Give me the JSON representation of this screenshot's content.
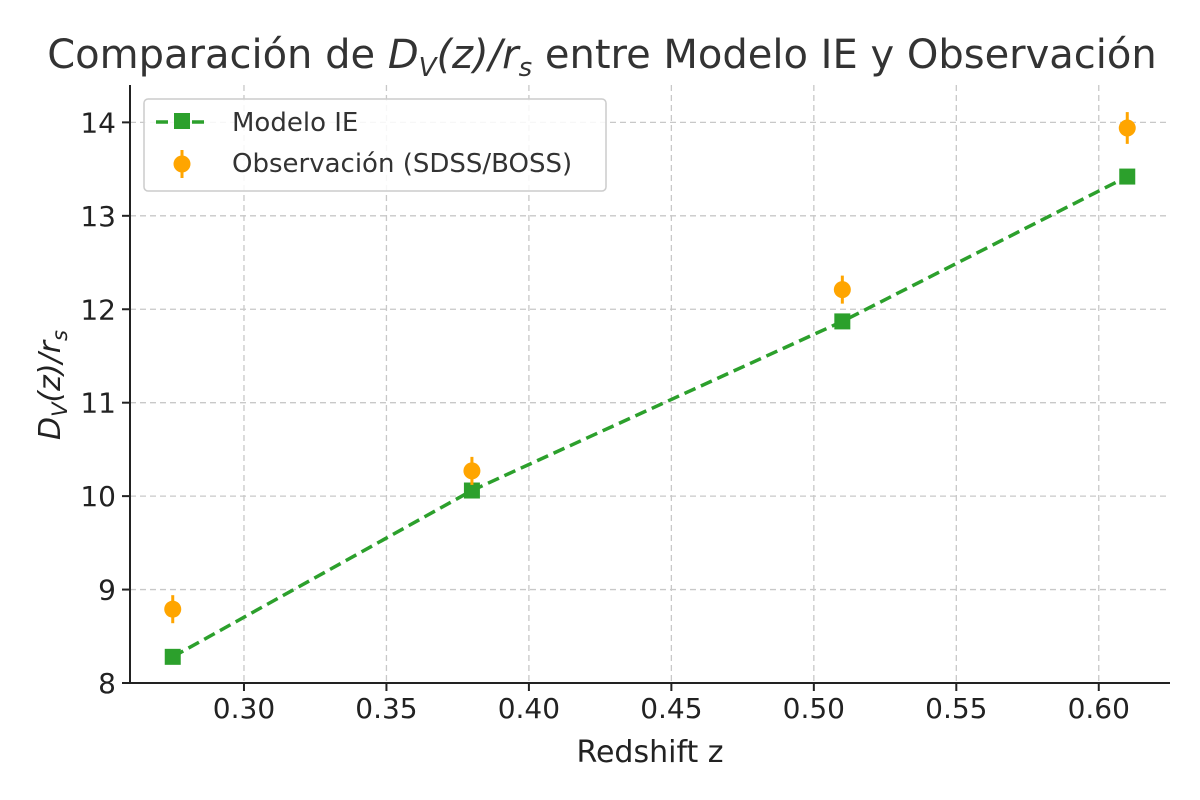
{
  "chart_data": {
    "type": "line",
    "title": {
      "prefix": "Comparación de ",
      "math": {
        "main": "D",
        "sub": "V",
        "mid": "(z)/",
        "main2": "r",
        "sub2": "s"
      },
      "suffix": " entre Modelo IE y Observación"
    },
    "xlabel": "Redshift z",
    "ylabel": {
      "main": "D",
      "sub": "V",
      "mid": "(z)/",
      "main2": "r",
      "sub2": "s"
    },
    "xlim": [
      0.26,
      0.625
    ],
    "ylim": [
      8,
      14.4
    ],
    "xticks": [
      0.3,
      0.35,
      0.4,
      0.45,
      0.5,
      0.55,
      0.6
    ],
    "xtick_labels": [
      "0.30",
      "0.35",
      "0.40",
      "0.45",
      "0.50",
      "0.55",
      "0.60"
    ],
    "yticks": [
      8,
      9,
      10,
      11,
      12,
      13,
      14
    ],
    "ytick_labels": [
      "8",
      "9",
      "10",
      "11",
      "12",
      "13",
      "14"
    ],
    "grid": true,
    "legend_position": "top-left",
    "series": [
      {
        "name": "Modelo IE",
        "style": "dashed-line-square-markers",
        "color": "#2ca02c",
        "x": [
          0.275,
          0.38,
          0.51,
          0.61
        ],
        "y": [
          8.28,
          10.06,
          11.87,
          13.42
        ]
      },
      {
        "name": "Observación (SDSS/BOSS)",
        "style": "errorbar-circle-markers",
        "color": "#ffa500",
        "x": [
          0.275,
          0.38,
          0.51,
          0.61
        ],
        "y": [
          8.79,
          10.27,
          12.21,
          13.94
        ],
        "yerr": [
          0.15,
          0.15,
          0.15,
          0.17
        ]
      }
    ]
  }
}
